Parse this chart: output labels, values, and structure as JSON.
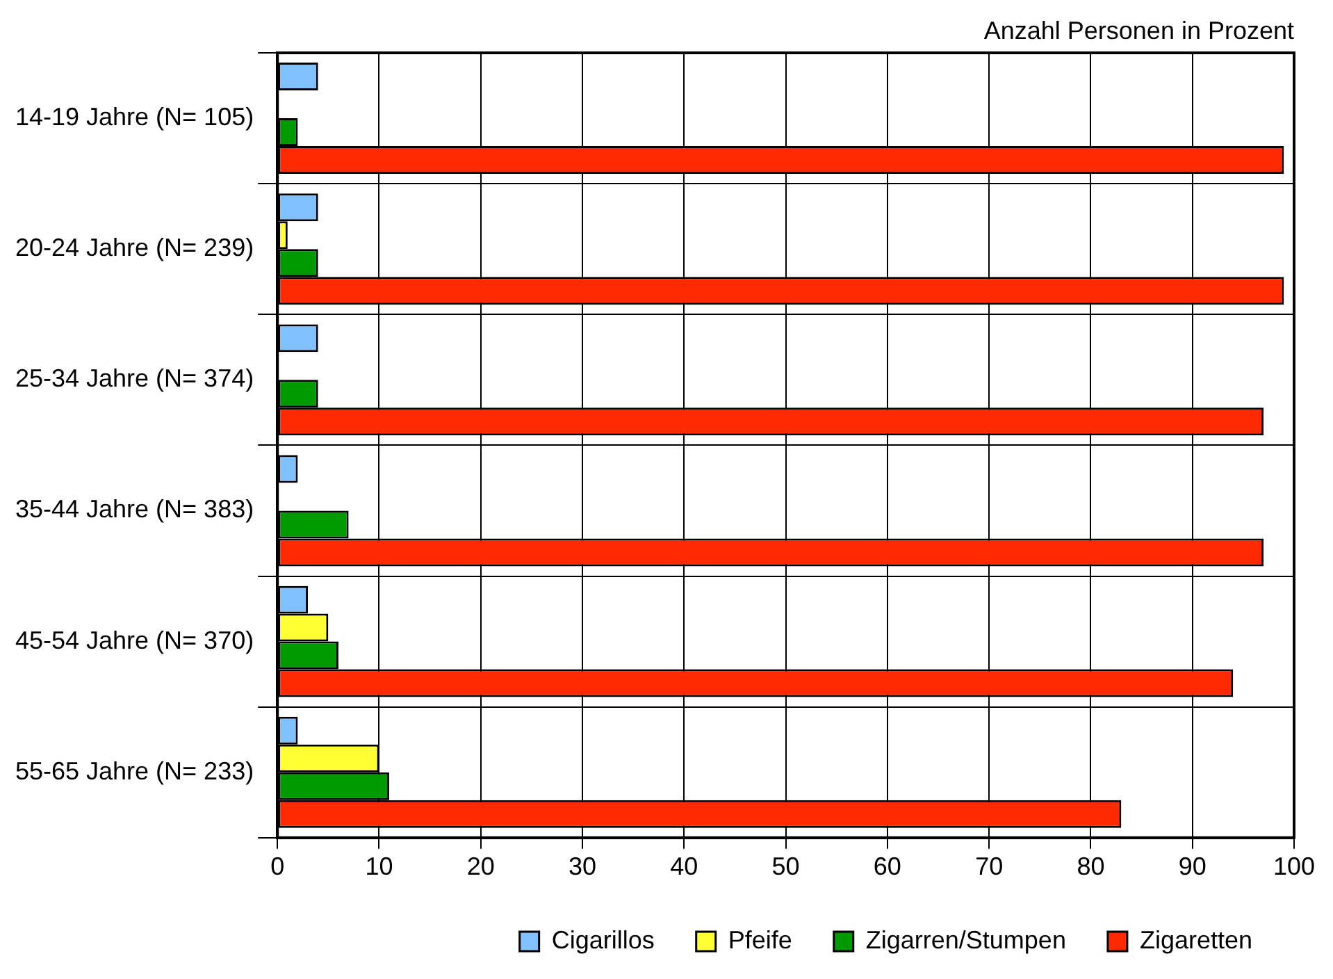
{
  "chart_data": {
    "type": "bar",
    "orientation": "horizontal",
    "xlabel": "Anzahl Personen in Prozent",
    "categories": [
      "14-19 Jahre (N= 105)",
      "20-24 Jahre (N= 239)",
      "25-34 Jahre (N= 374)",
      "35-44 Jahre (N= 383)",
      "45-54 Jahre (N= 370)",
      "55-65 Jahre (N= 233)"
    ],
    "series": [
      {
        "name": "Cigarillos",
        "color": "#80c0ff",
        "values": [
          4,
          4,
          4,
          2,
          3,
          2
        ]
      },
      {
        "name": "Pfeife",
        "color": "#ffff33",
        "values": [
          0,
          1,
          0,
          0,
          5,
          10
        ]
      },
      {
        "name": "Zigarren/Stumpen",
        "color": "#009900",
        "values": [
          2,
          4,
          4,
          7,
          6,
          11
        ]
      },
      {
        "name": "Zigaretten",
        "color": "#ff2a00",
        "values": [
          99,
          99,
          97,
          97,
          94,
          83
        ]
      }
    ],
    "xlim": [
      0,
      100
    ],
    "xticks": [
      0,
      10,
      20,
      30,
      40,
      50,
      60,
      70,
      80,
      90,
      100
    ],
    "grid": true,
    "legend": "bottom"
  }
}
